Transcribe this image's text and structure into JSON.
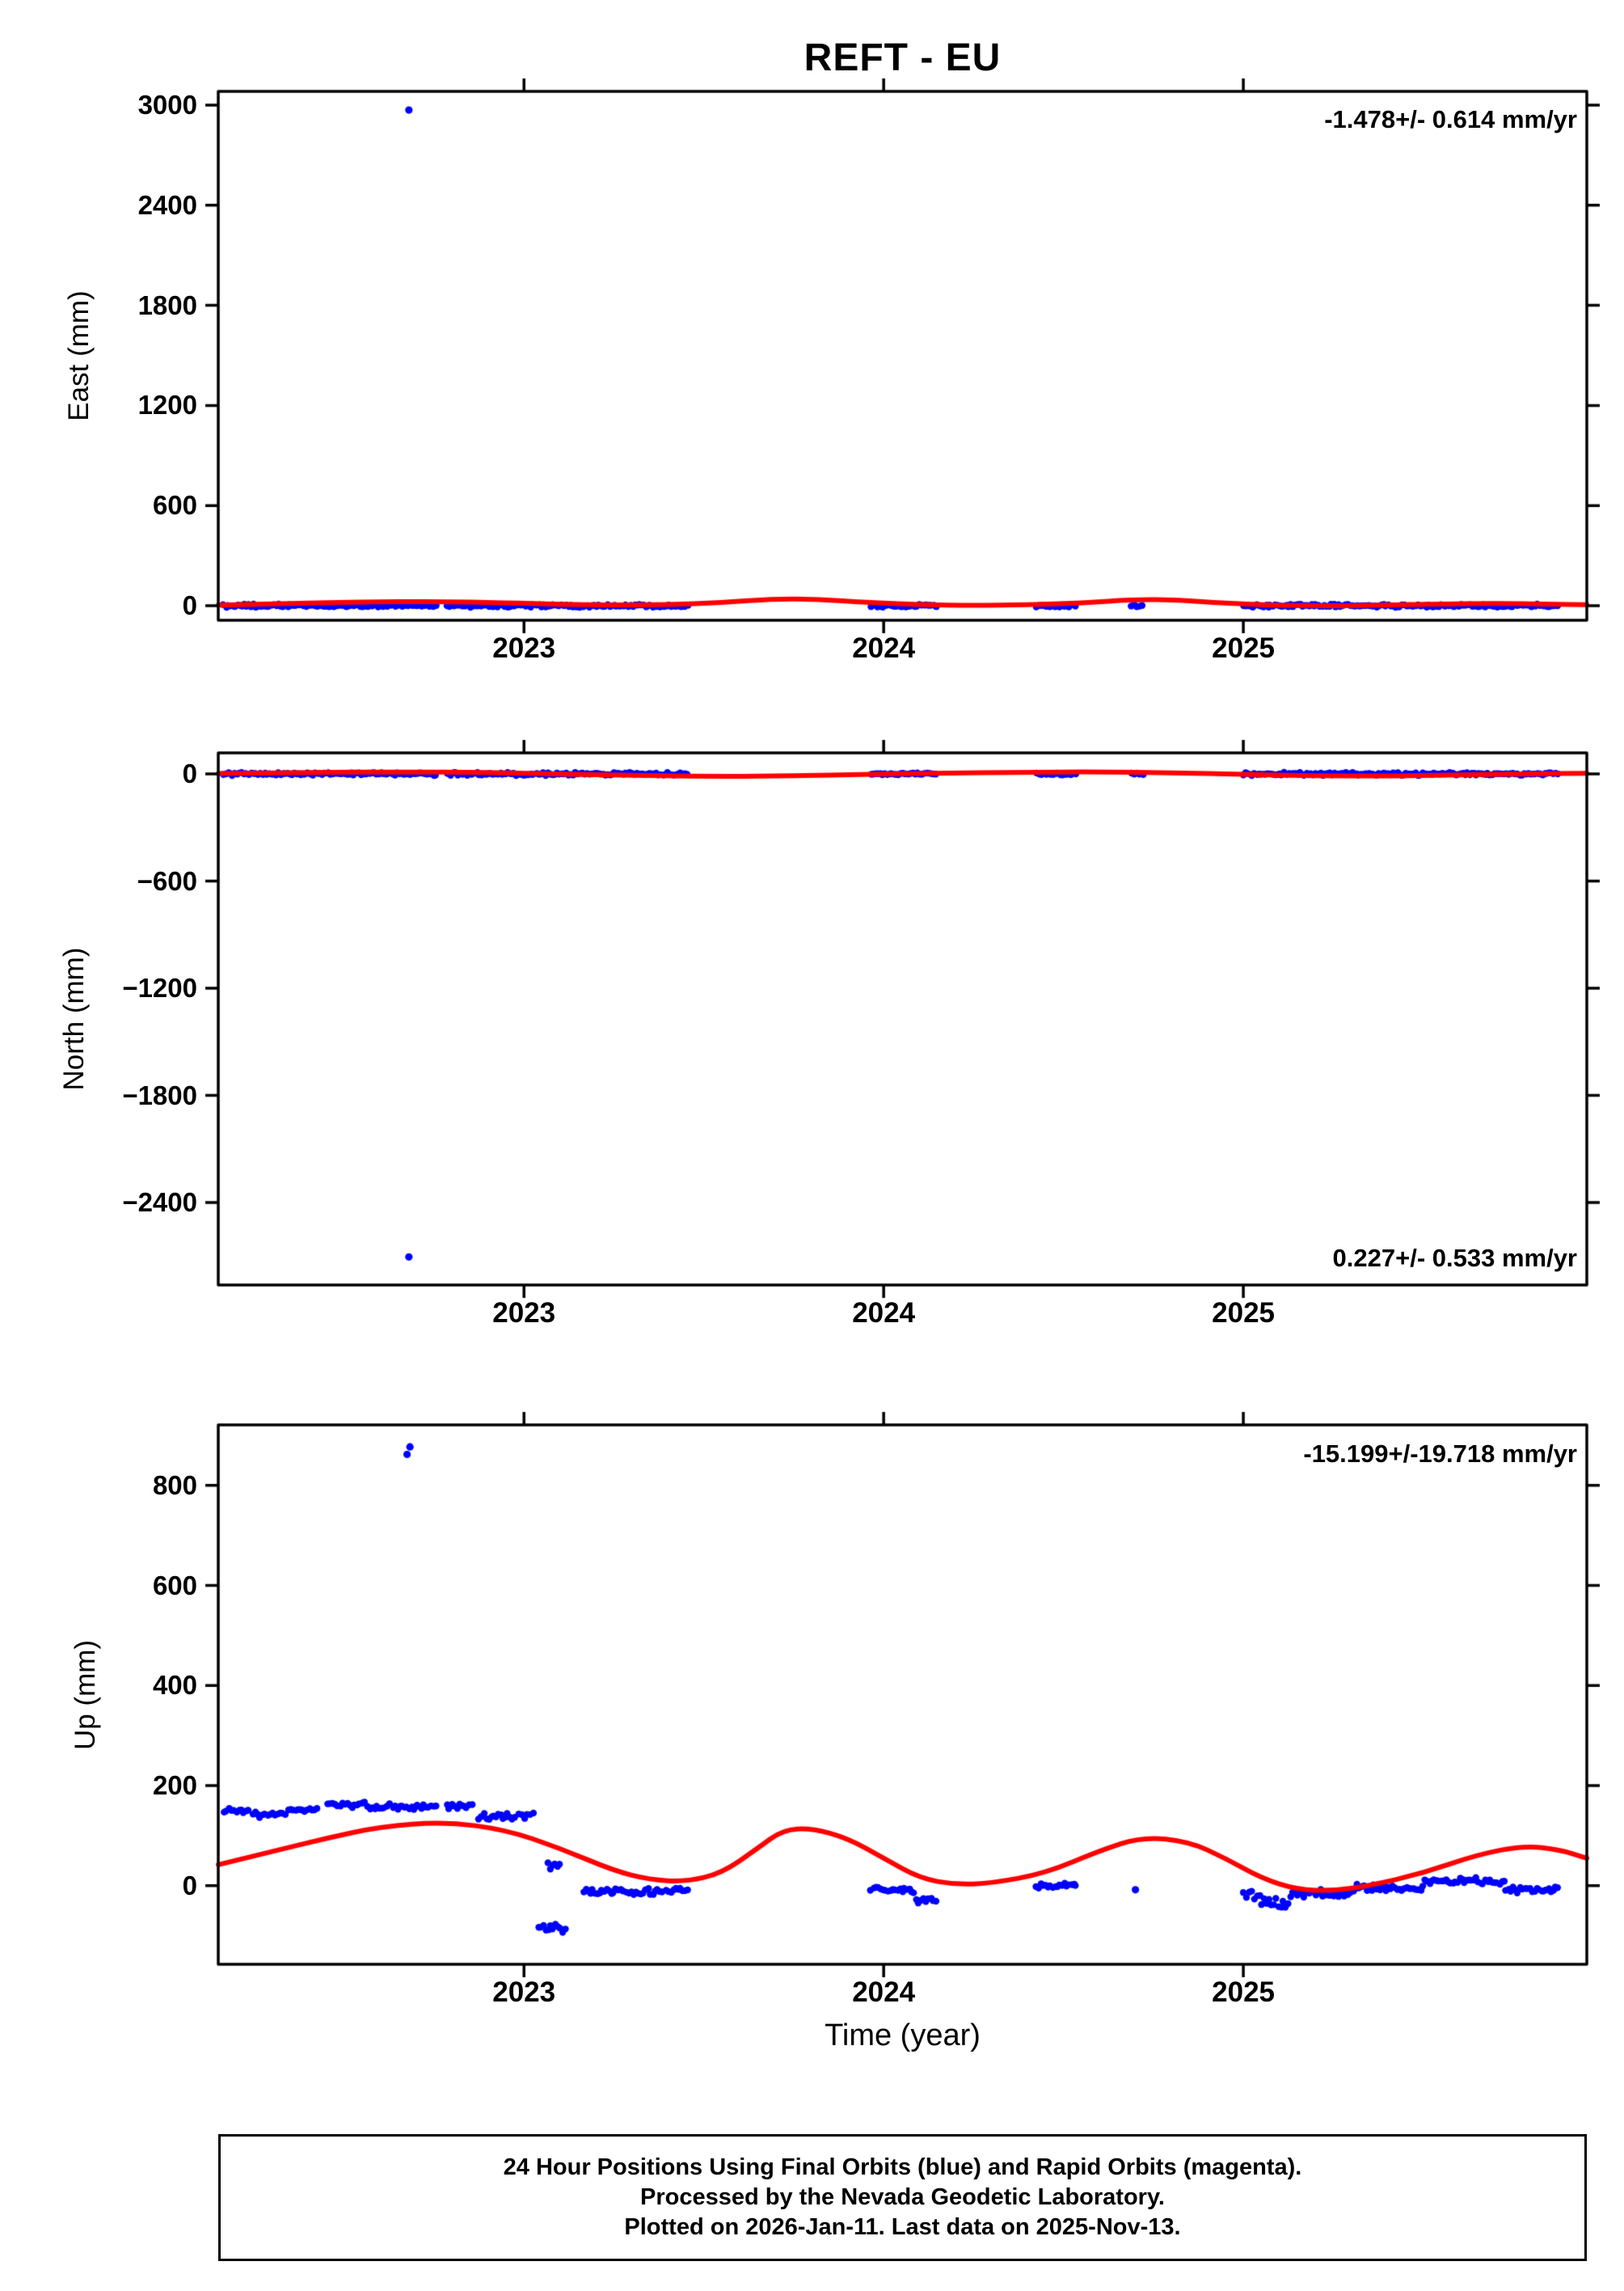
{
  "title": "REFT - EU",
  "xlabel": "Time (year)",
  "caption": {
    "line1": "24 Hour Positions Using Final Orbits (blue) and Rapid Orbits (magenta).",
    "line2": "Processed by the Nevada Geodetic Laboratory.",
    "line3": "Plotted on 2026-Jan-11. Last data on 2025-Nov-13."
  },
  "colors": {
    "points": "#0000ff",
    "trend": "#ff0000",
    "axis": "#000000"
  },
  "chart_data": [
    {
      "type": "scatter",
      "name": "east",
      "ylabel": "East (mm)",
      "annotation": "-1.478+/- 0.614 mm/yr",
      "annotation_pos": "top-right",
      "grid": false,
      "xlim": [
        2022.15,
        2025.955
      ],
      "ylim": [
        -87,
        3082
      ],
      "xticks": [
        {
          "v": 2023,
          "label": "2023"
        },
        {
          "v": 2024,
          "label": "2024"
        },
        {
          "v": 2025,
          "label": "2025"
        }
      ],
      "yticks": [
        {
          "v": 0,
          "label": "0"
        },
        {
          "v": 600,
          "label": "600"
        },
        {
          "v": 1200,
          "label": "1200"
        },
        {
          "v": 1800,
          "label": "1800"
        },
        {
          "v": 2400,
          "label": "2400"
        },
        {
          "v": 3000,
          "label": "3000"
        }
      ],
      "scatter_segments": [
        {
          "t0": 2022.165,
          "t1": 2022.755,
          "y": 0,
          "jitter": 11
        },
        {
          "t0": 2022.785,
          "t1": 2023.025,
          "y": 0,
          "jitter": 11
        },
        {
          "t0": 2023.035,
          "t1": 2023.455,
          "y": 0,
          "jitter": 11
        },
        {
          "t0": 2023.965,
          "t1": 2024.145,
          "y": 0,
          "jitter": 10
        },
        {
          "t0": 2024.425,
          "t1": 2024.535,
          "y": 0,
          "jitter": 9
        },
        {
          "t0": 2024.69,
          "t1": 2024.72,
          "y": 0,
          "jitter": 8
        },
        {
          "t0": 2025.0,
          "t1": 2025.875,
          "y": 0,
          "jitter": 11
        }
      ],
      "outliers": [
        [
          2022.68,
          2970
        ]
      ],
      "trend": [
        [
          2022.15,
          4
        ],
        [
          2022.35,
          14
        ],
        [
          2022.55,
          22
        ],
        [
          2022.75,
          26
        ],
        [
          2022.95,
          18
        ],
        [
          2023.1,
          8
        ],
        [
          2023.25,
          4
        ],
        [
          2023.4,
          6
        ],
        [
          2023.55,
          18
        ],
        [
          2023.7,
          42
        ],
        [
          2023.82,
          38
        ],
        [
          2023.95,
          20
        ],
        [
          2024.1,
          6
        ],
        [
          2024.25,
          2
        ],
        [
          2024.4,
          6
        ],
        [
          2024.55,
          16
        ],
        [
          2024.7,
          38
        ],
        [
          2024.82,
          34
        ],
        [
          2024.95,
          16
        ],
        [
          2025.1,
          2
        ],
        [
          2025.25,
          0
        ],
        [
          2025.4,
          4
        ],
        [
          2025.55,
          10
        ],
        [
          2025.7,
          14
        ],
        [
          2025.85,
          10
        ],
        [
          2025.955,
          6
        ]
      ]
    },
    {
      "type": "scatter",
      "name": "north",
      "ylabel": "North (mm)",
      "annotation": "0.227+/- 0.533 mm/yr",
      "annotation_pos": "bottom-right",
      "grid": false,
      "xlim": [
        2022.15,
        2025.955
      ],
      "ylim": [
        -2862,
        118
      ],
      "xticks": [
        {
          "v": 2023,
          "label": "2023"
        },
        {
          "v": 2024,
          "label": "2024"
        },
        {
          "v": 2025,
          "label": "2025"
        }
      ],
      "yticks": [
        {
          "v": 0,
          "label": "0"
        },
        {
          "v": -600,
          "label": "−600"
        },
        {
          "v": -1200,
          "label": "−1200"
        },
        {
          "v": -1800,
          "label": "−1800"
        },
        {
          "v": -2400,
          "label": "−2400"
        }
      ],
      "scatter_segments": [
        {
          "t0": 2022.165,
          "t1": 2022.755,
          "y": 0,
          "jitter": 10
        },
        {
          "t0": 2022.785,
          "t1": 2023.025,
          "y": 0,
          "jitter": 10
        },
        {
          "t0": 2023.035,
          "t1": 2023.455,
          "y": 0,
          "jitter": 10
        },
        {
          "t0": 2023.965,
          "t1": 2024.145,
          "y": 0,
          "jitter": 9
        },
        {
          "t0": 2024.425,
          "t1": 2024.535,
          "y": 0,
          "jitter": 8
        },
        {
          "t0": 2024.69,
          "t1": 2024.72,
          "y": 0,
          "jitter": 8
        },
        {
          "t0": 2025.0,
          "t1": 2025.875,
          "y": 0,
          "jitter": 10
        }
      ],
      "outliers": [
        [
          2022.68,
          -2705
        ]
      ],
      "trend": [
        [
          2022.15,
          2
        ],
        [
          2022.4,
          8
        ],
        [
          2022.65,
          12
        ],
        [
          2022.9,
          8
        ],
        [
          2023.1,
          0
        ],
        [
          2023.3,
          -8
        ],
        [
          2023.55,
          -14
        ],
        [
          2023.75,
          -10
        ],
        [
          2023.95,
          -2
        ],
        [
          2024.15,
          4
        ],
        [
          2024.4,
          10
        ],
        [
          2024.6,
          12
        ],
        [
          2024.8,
          6
        ],
        [
          2025.0,
          -2
        ],
        [
          2025.2,
          -10
        ],
        [
          2025.4,
          -12
        ],
        [
          2025.6,
          -6
        ],
        [
          2025.8,
          2
        ],
        [
          2025.955,
          4
        ]
      ]
    },
    {
      "type": "scatter",
      "name": "up",
      "ylabel": "Up (mm)",
      "annotation": "-15.199+/-19.718 mm/yr",
      "annotation_pos": "top-right",
      "grid": false,
      "xlim": [
        2022.15,
        2025.955
      ],
      "ylim": [
        -157,
        921
      ],
      "xticks": [
        {
          "v": 2023,
          "label": "2023"
        },
        {
          "v": 2024,
          "label": "2024"
        },
        {
          "v": 2025,
          "label": "2025"
        }
      ],
      "yticks": [
        {
          "v": 0,
          "label": "0"
        },
        {
          "v": 200,
          "label": "200"
        },
        {
          "v": 400,
          "label": "400"
        },
        {
          "v": 600,
          "label": "600"
        },
        {
          "v": 800,
          "label": "800"
        }
      ],
      "scatter_segments": [
        {
          "t0": 2022.165,
          "t1": 2022.235,
          "y": 147,
          "jitter": 9
        },
        {
          "t0": 2022.245,
          "t1": 2022.335,
          "y": 143,
          "jitter": 8
        },
        {
          "t0": 2022.345,
          "t1": 2022.425,
          "y": 150,
          "jitter": 7
        },
        {
          "t0": 2022.455,
          "t1": 2022.555,
          "y": 162,
          "jitter": 8
        },
        {
          "t0": 2022.565,
          "t1": 2022.625,
          "y": 158,
          "jitter": 7
        },
        {
          "t0": 2022.635,
          "t1": 2022.755,
          "y": 157,
          "jitter": 8
        },
        {
          "t0": 2022.785,
          "t1": 2022.855,
          "y": 159,
          "jitter": 7
        },
        {
          "t0": 2022.875,
          "t1": 2022.975,
          "y": 137,
          "jitter": 9
        },
        {
          "t0": 2022.985,
          "t1": 2023.025,
          "y": 140,
          "jitter": 7
        },
        {
          "t0": 2023.065,
          "t1": 2023.1,
          "y": 38,
          "jitter": 10
        },
        {
          "t0": 2023.04,
          "t1": 2023.115,
          "y": -85,
          "jitter": 14
        },
        {
          "t0": 2023.165,
          "t1": 2023.275,
          "y": -10,
          "jitter": 8
        },
        {
          "t0": 2023.285,
          "t1": 2023.385,
          "y": -12,
          "jitter": 7
        },
        {
          "t0": 2023.395,
          "t1": 2023.455,
          "y": -8,
          "jitter": 7
        },
        {
          "t0": 2023.965,
          "t1": 2024.085,
          "y": -8,
          "jitter": 8
        },
        {
          "t0": 2024.09,
          "t1": 2024.145,
          "y": -30,
          "jitter": 7
        },
        {
          "t0": 2024.425,
          "t1": 2024.535,
          "y": 0,
          "jitter": 6
        },
        {
          "t0": 2025.0,
          "t1": 2025.045,
          "y": -18,
          "jitter": 12
        },
        {
          "t0": 2025.05,
          "t1": 2025.125,
          "y": -35,
          "jitter": 12
        },
        {
          "t0": 2025.13,
          "t1": 2025.305,
          "y": -15,
          "jitter": 9
        },
        {
          "t0": 2025.31,
          "t1": 2025.5,
          "y": -4,
          "jitter": 8
        },
        {
          "t0": 2025.505,
          "t1": 2025.725,
          "y": 9,
          "jitter": 8
        },
        {
          "t0": 2025.73,
          "t1": 2025.875,
          "y": -8,
          "jitter": 8
        }
      ],
      "outliers": [
        [
          2022.675,
          862
        ],
        [
          2022.683,
          877
        ],
        [
          2024.7,
          -8
        ]
      ],
      "trend": [
        [
          2022.15,
          42
        ],
        [
          2022.3,
          68
        ],
        [
          2022.45,
          95
        ],
        [
          2022.6,
          118
        ],
        [
          2022.78,
          128
        ],
        [
          2022.95,
          112
        ],
        [
          2023.1,
          75
        ],
        [
          2023.25,
          30
        ],
        [
          2023.35,
          12
        ],
        [
          2023.45,
          8
        ],
        [
          2023.55,
          25
        ],
        [
          2023.65,
          75
        ],
        [
          2023.72,
          112
        ],
        [
          2023.8,
          115
        ],
        [
          2023.9,
          95
        ],
        [
          2024.0,
          55
        ],
        [
          2024.1,
          15
        ],
        [
          2024.2,
          2
        ],
        [
          2024.3,
          5
        ],
        [
          2024.45,
          25
        ],
        [
          2024.6,
          70
        ],
        [
          2024.72,
          98
        ],
        [
          2024.85,
          88
        ],
        [
          2024.95,
          55
        ],
        [
          2025.05,
          15
        ],
        [
          2025.15,
          -8
        ],
        [
          2025.25,
          -10
        ],
        [
          2025.35,
          0
        ],
        [
          2025.5,
          25
        ],
        [
          2025.65,
          62
        ],
        [
          2025.78,
          80
        ],
        [
          2025.88,
          72
        ],
        [
          2025.955,
          55
        ]
      ]
    }
  ]
}
